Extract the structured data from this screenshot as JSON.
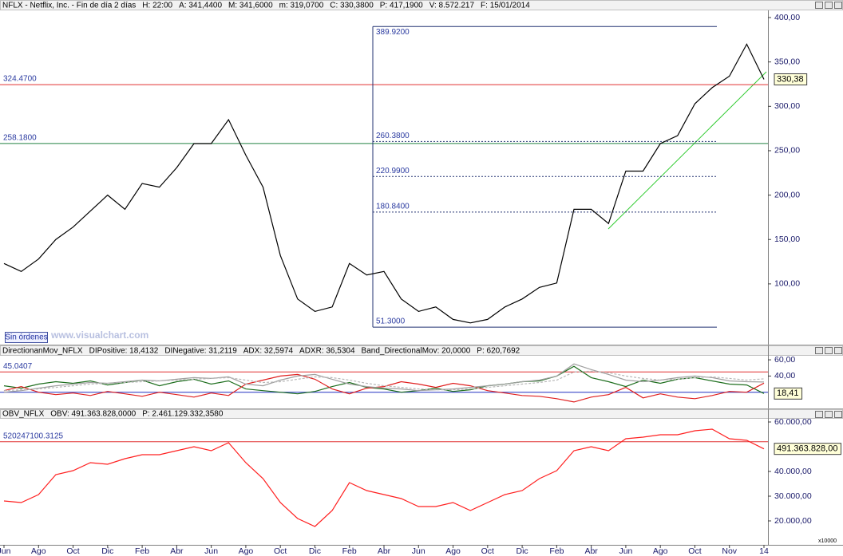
{
  "chart_data": [
    {
      "type": "line",
      "title_items": [
        {
          "text": "NFLX - Netflix, Inc. - Fin de día 2 días",
          "color": "#000000"
        },
        {
          "text": "H: 22:00",
          "color": "#000000"
        },
        {
          "text": "A: 341,4400",
          "color": "#000000"
        },
        {
          "text": "M: 341,6000",
          "color": "#000000"
        },
        {
          "text": "m: 319,0700",
          "color": "#000000"
        },
        {
          "text": "C: 330,3800",
          "color": "#000000"
        },
        {
          "text": "P: 417,1900",
          "color": "#e02020"
        },
        {
          "text": "V: 8.572.217",
          "color": "#000000"
        },
        {
          "text": "F: 15/01/2014",
          "color": "#000000"
        }
      ],
      "categories": [
        "Jun",
        null,
        "Ago",
        null,
        "Oct",
        null,
        "Dic",
        null,
        "Feb",
        null,
        "Abr",
        null,
        "Jun",
        null,
        "Ago",
        null,
        "Oct",
        null,
        "Dic",
        null,
        "Feb",
        null,
        "Abr",
        null,
        "Jun",
        null,
        "Ago",
        null,
        "Oct",
        null,
        "Dic",
        null,
        "Feb",
        null,
        "Abr",
        null,
        "Jun",
        null,
        "Ago",
        null,
        "Oct",
        null,
        "Nov",
        null,
        "14"
      ],
      "values": [
        123,
        114,
        128,
        150,
        164,
        182,
        200,
        184,
        213,
        209,
        231,
        258,
        258,
        285,
        245,
        209,
        132,
        83,
        69,
        74,
        123,
        110,
        114,
        83,
        69,
        74,
        60,
        56,
        60,
        74,
        83,
        96,
        101,
        184,
        184,
        168,
        227,
        227,
        258,
        267,
        303,
        321,
        334,
        370,
        330.38
      ],
      "color": "#000000",
      "ylim": [
        31.6,
        407.2
      ],
      "yticks": [
        {
          "value": 100,
          "label": "100,00"
        },
        {
          "value": 150,
          "label": "150,00"
        },
        {
          "value": 200,
          "label": "200,00"
        },
        {
          "value": 250,
          "label": "250,00"
        },
        {
          "value": 300,
          "label": "300,00"
        },
        {
          "value": 350,
          "label": "350,00"
        },
        {
          "value": 400,
          "label": "400,00"
        }
      ],
      "levels": [
        {
          "value": 324.47,
          "label": "324.4700",
          "color": "#e03030"
        },
        {
          "value": 258.18,
          "label": "258.1800",
          "color": "#208040"
        }
      ],
      "fibonacci": [
        {
          "value": 389.92,
          "label": "389.9200"
        },
        {
          "value": 260.38,
          "label": "260.3800"
        },
        {
          "value": 220.99,
          "label": "220.9900"
        },
        {
          "value": 180.84,
          "label": "180.8400"
        },
        {
          "value": 51.3,
          "label": "51.3000"
        }
      ],
      "last_value": {
        "value": 330.38,
        "label": "330,38"
      },
      "button": "Sin órdenes",
      "watermark": "www.visualchart.com"
    },
    {
      "type": "line",
      "title_items": [
        {
          "text": "DirectionanMov_NFLX",
          "color": "#000000"
        },
        {
          "text": "DIPositive: 18,4132",
          "color": "#1f6f1f"
        },
        {
          "text": "DINegative: 31,2119",
          "color": "#e02020"
        },
        {
          "text": "ADX: 32,5974",
          "color": "#909090"
        },
        {
          "text": "ADXR: 36,5304",
          "color": "#909090"
        },
        {
          "text": "Band_DirectionalMov: 20,0000",
          "color": "#000000"
        },
        {
          "text": "P: 620,7692",
          "color": "#e02020"
        }
      ],
      "series": [
        {
          "color": "#1f6f1f",
          "values": [
            28,
            25,
            30,
            33,
            31,
            34,
            29,
            32,
            35,
            28,
            33,
            36,
            30,
            34,
            24,
            22,
            20,
            18,
            21,
            27,
            32,
            26,
            24,
            20,
            22,
            25,
            21,
            23,
            28,
            30,
            33,
            34,
            40,
            52,
            38,
            33,
            27,
            35,
            31,
            36,
            38,
            34,
            30,
            29,
            18.41
          ]
        },
        {
          "color": "#e02020",
          "values": [
            22,
            27,
            20,
            17,
            19,
            16,
            21,
            18,
            15,
            20,
            17,
            14,
            19,
            16,
            30,
            35,
            40,
            42,
            36,
            24,
            18,
            25,
            27,
            33,
            30,
            26,
            31,
            28,
            22,
            19,
            16,
            15,
            12,
            8,
            14,
            17,
            26,
            13,
            18,
            14,
            12,
            16,
            21,
            20,
            31.21
          ]
        },
        {
          "color": "#a0a0a0",
          "values": [
            20,
            22,
            25,
            28,
            30,
            32,
            31,
            33,
            35,
            34,
            36,
            38,
            37,
            39,
            30,
            28,
            35,
            40,
            42,
            36,
            30,
            27,
            25,
            24,
            22,
            23,
            24,
            26,
            28,
            30,
            33,
            35,
            40,
            55,
            48,
            42,
            35,
            33,
            35,
            38,
            40,
            38,
            34,
            33,
            32.6
          ]
        },
        {
          "color": "#b8b8b8",
          "dash": true,
          "values": [
            22,
            23,
            24,
            26,
            28,
            30,
            31,
            32,
            33,
            34,
            35,
            36,
            37,
            38,
            35,
            32,
            33,
            36,
            39,
            38,
            35,
            31,
            28,
            26,
            24,
            23,
            23,
            24,
            26,
            28,
            30,
            32,
            35,
            45,
            46,
            44,
            40,
            37,
            35,
            36,
            38,
            39,
            37,
            35,
            36.53
          ]
        }
      ],
      "ylim": [
        0,
        65
      ],
      "yticks": [
        {
          "value": 40,
          "label": "40,00"
        },
        {
          "value": 60,
          "label": "60,00"
        }
      ],
      "levels": [
        {
          "value": 45.0407,
          "label": "45.0407",
          "color": "#e03030"
        },
        {
          "value": 20,
          "color": "#2030c0"
        }
      ],
      "last_value": {
        "value": 18.41,
        "label": "18,41"
      }
    },
    {
      "type": "line",
      "title_items": [
        {
          "text": "OBV_NFLX",
          "color": "#000000"
        },
        {
          "text": "OBV: 491.363.828,0000",
          "color": "#e02020"
        },
        {
          "text": "P: 2.461.129.332,3580",
          "color": "#e02020"
        }
      ],
      "values": [
        28065,
        27420,
        30645,
        38710,
        40320,
        43550,
        42900,
        45160,
        46770,
        46770,
        48390,
        50000,
        48390,
        51610,
        43550,
        37100,
        27420,
        20970,
        17740,
        24190,
        35480,
        32260,
        30650,
        29030,
        25810,
        25810,
        27420,
        24190,
        27420,
        30650,
        32260,
        37100,
        40320,
        48390,
        50000,
        48390,
        53230,
        53870,
        54840,
        54840,
        56450,
        57100,
        53230,
        52580,
        49136.3828
      ],
      "color": "#ff2020",
      "ylim": [
        10645,
        61290
      ],
      "yticks": [
        {
          "value": 20000,
          "label": "20.000,00"
        },
        {
          "value": 30000,
          "label": "30.000,00"
        },
        {
          "value": 40000,
          "label": "40.000,00"
        },
        {
          "value": 60000,
          "label": "60.000,00"
        }
      ],
      "levels": [
        {
          "value": 52024.71003125,
          "label": "520247100.3125",
          "color": "#e03030"
        }
      ],
      "last_value": {
        "value": 49136.3828,
        "label": "491.363.828,00"
      },
      "scale_note": "x10000"
    }
  ]
}
